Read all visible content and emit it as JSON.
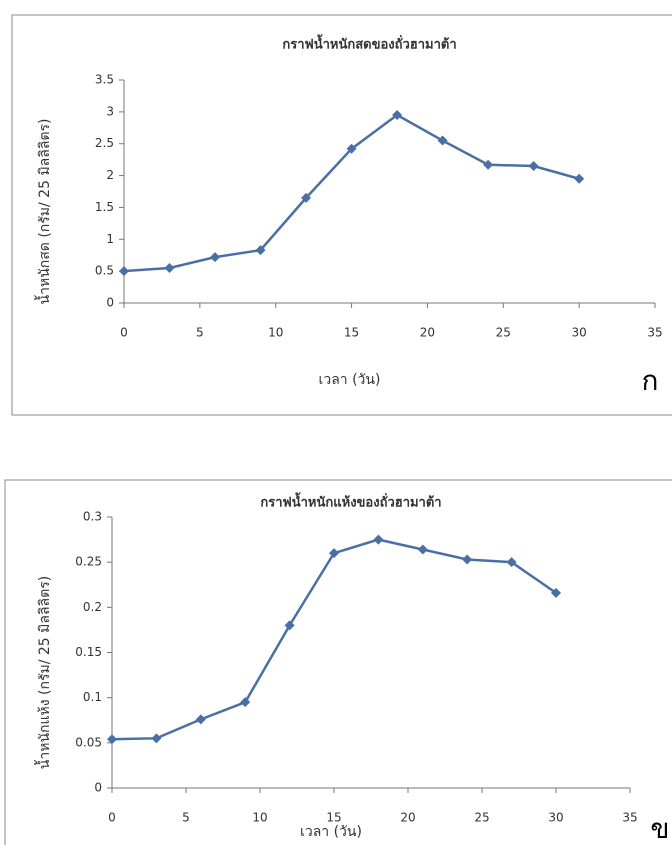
{
  "chart_data": [
    {
      "type": "line",
      "title": "กราฟน้ำหนักสดของถั่วฮามาต้า",
      "x_label": "เวลา (วัน)",
      "y_label": "น้ำหนักสด (กรัม/ 25 มิลลิลิตร)",
      "panel_label": "ก",
      "x": [
        0,
        3,
        6,
        9,
        12,
        15,
        18,
        21,
        24,
        27,
        30
      ],
      "values": [
        0.5,
        0.55,
        0.72,
        0.83,
        1.65,
        2.42,
        2.95,
        2.55,
        2.17,
        2.15,
        1.95
      ],
      "color": "#4a6fa5",
      "xlim": [
        0,
        35
      ],
      "xticks": [
        0,
        5,
        10,
        15,
        20,
        25,
        30,
        35
      ],
      "ylim": [
        0,
        3.5
      ],
      "yticks": [
        0,
        0.5,
        1,
        1.5,
        2,
        2.5,
        3,
        3.5
      ]
    },
    {
      "type": "line",
      "title": "กราฟน้ำหนักแห้งของถั่วฮามาต้า",
      "x_label": "เวลา (วัน)",
      "y_label": "น้ำหนักแห้ง (กรัม/ 25 มิลลิลิตร)",
      "panel_label": "ข",
      "x": [
        0,
        3,
        6,
        9,
        12,
        15,
        18,
        21,
        24,
        27,
        30
      ],
      "values": [
        0.054,
        0.055,
        0.076,
        0.095,
        0.18,
        0.26,
        0.275,
        0.264,
        0.253,
        0.25,
        0.216
      ],
      "color": "#4a6fa5",
      "xlim": [
        0,
        35
      ],
      "xticks": [
        0,
        5,
        10,
        15,
        20,
        25,
        30,
        35
      ],
      "ylim": [
        0,
        0.3
      ],
      "yticks": [
        0,
        0.05,
        0.1,
        0.15,
        0.2,
        0.25,
        0.3
      ]
    }
  ]
}
